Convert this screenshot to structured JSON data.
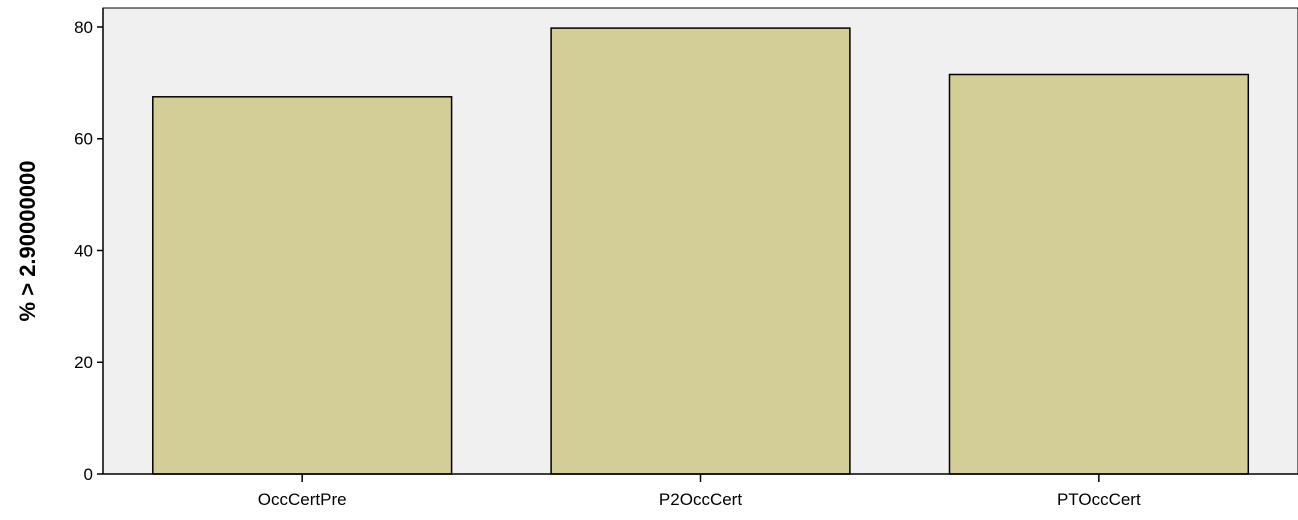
{
  "chart_data": {
    "type": "bar",
    "title": "",
    "xlabel": "",
    "ylabel": "% > 2.90000000",
    "categories": [
      "OccCertPre",
      "P2OccCert",
      "PTOccCert"
    ],
    "values": [
      67.5,
      79.8,
      71.5
    ],
    "ylim": [
      0,
      83.4
    ],
    "yticks": [
      0,
      20,
      40,
      60,
      80
    ],
    "ytick_labels": [
      "0",
      "20",
      "40",
      "60",
      "80"
    ],
    "grid": false,
    "legend": "none",
    "colors": {
      "bar_fill": "#d3cd98",
      "bar_stroke": "#000000",
      "plot_background": "#f0f0f0",
      "axis": "#000000",
      "text": "#000000"
    }
  }
}
